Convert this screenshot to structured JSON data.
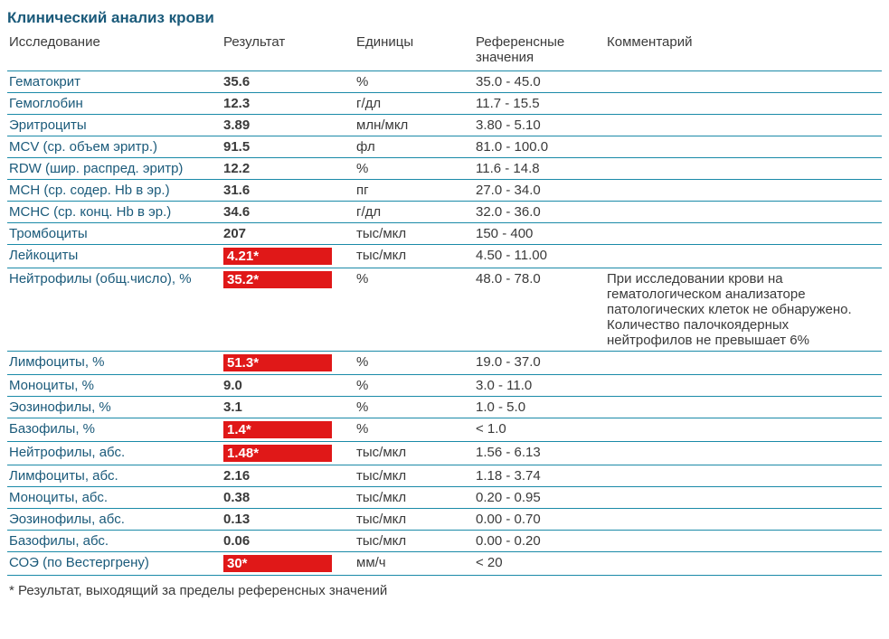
{
  "title": "Клинический анализ крови",
  "columns": {
    "test": "Исследование",
    "result": "Результат",
    "unit": "Единицы",
    "ref": "Референсные значения",
    "comment": "Комментарий"
  },
  "colors": {
    "heading": "#1a5a7a",
    "row_border": "#1a8aa8",
    "flag_bg": "#e01818",
    "flag_text": "#ffffff",
    "body_text": "#3a3a3a",
    "background": "#ffffff"
  },
  "rows": [
    {
      "test": "Гематокрит",
      "result": "35.6",
      "flagged": false,
      "unit": "%",
      "ref": "35.0 - 45.0",
      "comment": ""
    },
    {
      "test": "Гемоглобин",
      "result": "12.3",
      "flagged": false,
      "unit": "г/дл",
      "ref": "11.7 - 15.5",
      "comment": ""
    },
    {
      "test": "Эритроциты",
      "result": "3.89",
      "flagged": false,
      "unit": "млн/мкл",
      "ref": "3.80 - 5.10",
      "comment": ""
    },
    {
      "test": "MCV (ср. объем эритр.)",
      "result": "91.5",
      "flagged": false,
      "unit": "фл",
      "ref": "81.0 - 100.0",
      "comment": ""
    },
    {
      "test": "RDW (шир. распред. эритр)",
      "result": "12.2",
      "flagged": false,
      "unit": "%",
      "ref": "11.6 - 14.8",
      "comment": ""
    },
    {
      "test": "MCH (ср. содер. Hb в эр.)",
      "result": "31.6",
      "flagged": false,
      "unit": "пг",
      "ref": "27.0 - 34.0",
      "comment": ""
    },
    {
      "test": "MCHC (ср. конц. Hb в эр.)",
      "result": "34.6",
      "flagged": false,
      "unit": "г/дл",
      "ref": "32.0 - 36.0",
      "comment": ""
    },
    {
      "test": "Тромбоциты",
      "result": "207",
      "flagged": false,
      "unit": "тыс/мкл",
      "ref": "150 - 400",
      "comment": ""
    },
    {
      "test": "Лейкоциты",
      "result": "4.21*",
      "flagged": true,
      "unit": "тыс/мкл",
      "ref": "4.50 - 11.00",
      "comment": ""
    },
    {
      "test": "Нейтрофилы (общ.число), %",
      "result": "35.2*",
      "flagged": true,
      "unit": "%",
      "ref": "48.0 - 78.0",
      "comment": "При исследовании крови на гематологическом анализаторе патологических клеток не обнаружено. Количество палочкоядерных нейтрофилов не превышает 6%"
    },
    {
      "test": "Лимфоциты, %",
      "result": "51.3*",
      "flagged": true,
      "unit": "%",
      "ref": "19.0 - 37.0",
      "comment": ""
    },
    {
      "test": "Моноциты, %",
      "result": "9.0",
      "flagged": false,
      "unit": "%",
      "ref": "3.0 - 11.0",
      "comment": ""
    },
    {
      "test": "Эозинофилы, %",
      "result": "3.1",
      "flagged": false,
      "unit": "%",
      "ref": "1.0 - 5.0",
      "comment": ""
    },
    {
      "test": "Базофилы, %",
      "result": "1.4*",
      "flagged": true,
      "unit": "%",
      "ref": "< 1.0",
      "comment": ""
    },
    {
      "test": "Нейтрофилы, абс.",
      "result": "1.48*",
      "flagged": true,
      "unit": "тыс/мкл",
      "ref": "1.56 - 6.13",
      "comment": ""
    },
    {
      "test": "Лимфоциты, абс.",
      "result": "2.16",
      "flagged": false,
      "unit": "тыс/мкл",
      "ref": "1.18 - 3.74",
      "comment": ""
    },
    {
      "test": "Моноциты, абс.",
      "result": "0.38",
      "flagged": false,
      "unit": "тыс/мкл",
      "ref": "0.20 - 0.95",
      "comment": ""
    },
    {
      "test": "Эозинофилы, абс.",
      "result": "0.13",
      "flagged": false,
      "unit": "тыс/мкл",
      "ref": "0.00 - 0.70",
      "comment": ""
    },
    {
      "test": "Базофилы, абс.",
      "result": "0.06",
      "flagged": false,
      "unit": "тыс/мкл",
      "ref": "0.00 - 0.20",
      "comment": ""
    },
    {
      "test": "СОЭ (по Вестергрену)",
      "result": "30*",
      "flagged": true,
      "unit": "мм/ч",
      "ref": "< 20",
      "comment": ""
    }
  ],
  "footnote": "* Результат, выходящий за пределы референсных значений"
}
